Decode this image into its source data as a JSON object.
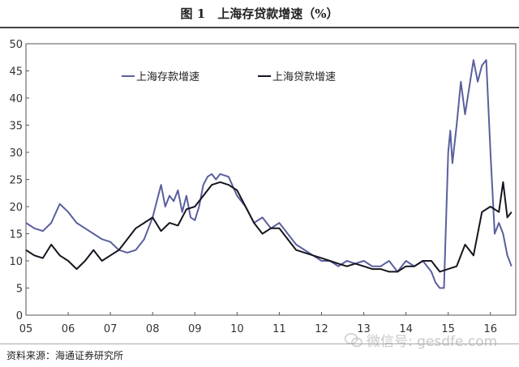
{
  "header": {
    "title": "图 1　上海存贷款增速（%）"
  },
  "footer": {
    "source": "资料来源：海通证券研究所"
  },
  "watermark": {
    "icon": "wechat-icon",
    "text": "微信号: gesdfe.com"
  },
  "colors": {
    "deposit": "#5a5f9e",
    "loan": "#15151f",
    "axis": "#555555"
  },
  "chart_data": {
    "type": "line",
    "title": "图 1　上海存贷款增速（%）",
    "xlim": [
      2005,
      2016.6
    ],
    "ylim": [
      0,
      50
    ],
    "yticks": [
      0,
      5,
      10,
      15,
      20,
      25,
      30,
      35,
      40,
      45,
      50
    ],
    "xticks": [
      {
        "label": "05",
        "value": 2005
      },
      {
        "label": "06",
        "value": 2006
      },
      {
        "label": "07",
        "value": 2007
      },
      {
        "label": "08",
        "value": 2008
      },
      {
        "label": "09",
        "value": 2009
      },
      {
        "label": "10",
        "value": 2010
      },
      {
        "label": "11",
        "value": 2011
      },
      {
        "label": "12",
        "value": 2012
      },
      {
        "label": "13",
        "value": 2013
      },
      {
        "label": "14",
        "value": 2014
      },
      {
        "label": "15",
        "value": 2015
      },
      {
        "label": "16",
        "value": 2016
      }
    ],
    "legend_position": "top-center",
    "grid": false,
    "series": [
      {
        "name": "上海存款增速",
        "x": [
          2005.0,
          2005.2,
          2005.4,
          2005.6,
          2005.8,
          2006.0,
          2006.2,
          2006.4,
          2006.6,
          2006.8,
          2007.0,
          2007.2,
          2007.4,
          2007.6,
          2007.8,
          2008.0,
          2008.1,
          2008.2,
          2008.3,
          2008.4,
          2008.5,
          2008.6,
          2008.7,
          2008.8,
          2008.9,
          2009.0,
          2009.1,
          2009.2,
          2009.3,
          2009.4,
          2009.5,
          2009.6,
          2009.8,
          2010.0,
          2010.2,
          2010.4,
          2010.6,
          2010.8,
          2011.0,
          2011.2,
          2011.4,
          2011.6,
          2011.8,
          2012.0,
          2012.2,
          2012.4,
          2012.6,
          2012.8,
          2013.0,
          2013.2,
          2013.4,
          2013.6,
          2013.8,
          2014.0,
          2014.2,
          2014.4,
          2014.6,
          2014.7,
          2014.8,
          2014.9,
          2015.0,
          2015.05,
          2015.1,
          2015.2,
          2015.3,
          2015.4,
          2015.5,
          2015.6,
          2015.7,
          2015.8,
          2015.9,
          2016.0,
          2016.1,
          2016.2,
          2016.3,
          2016.4,
          2016.5
        ],
        "y": [
          17,
          16,
          15.5,
          17,
          20.5,
          19,
          17,
          16,
          15,
          14,
          13.5,
          12,
          11.5,
          12,
          14,
          18,
          21,
          24,
          20,
          22,
          21,
          23,
          19,
          22,
          18,
          17.5,
          20,
          24,
          25.5,
          26,
          25,
          26,
          25.5,
          22,
          20,
          17,
          18,
          16,
          17,
          15,
          13,
          12,
          11,
          10,
          10,
          9,
          10,
          9.5,
          10,
          9,
          9,
          10,
          8,
          10,
          9,
          10,
          8,
          6,
          5,
          5,
          30,
          34,
          28,
          35,
          43,
          37,
          42,
          47,
          43,
          46,
          47,
          30,
          15,
          17,
          15,
          11,
          9
        ]
      },
      {
        "name": "上海贷款增速",
        "x": [
          2005.0,
          2005.2,
          2005.4,
          2005.6,
          2005.8,
          2006.0,
          2006.2,
          2006.4,
          2006.6,
          2006.8,
          2007.0,
          2007.2,
          2007.4,
          2007.6,
          2007.8,
          2008.0,
          2008.2,
          2008.4,
          2008.6,
          2008.8,
          2009.0,
          2009.2,
          2009.4,
          2009.6,
          2009.8,
          2010.0,
          2010.2,
          2010.4,
          2010.6,
          2010.8,
          2011.0,
          2011.2,
          2011.4,
          2011.6,
          2011.8,
          2012.0,
          2012.2,
          2012.4,
          2012.6,
          2012.8,
          2013.0,
          2013.2,
          2013.4,
          2013.6,
          2013.8,
          2014.0,
          2014.2,
          2014.4,
          2014.6,
          2014.8,
          2015.0,
          2015.2,
          2015.4,
          2015.6,
          2015.8,
          2016.0,
          2016.2,
          2016.3,
          2016.4,
          2016.5
        ],
        "y": [
          12,
          11,
          10.5,
          13,
          11,
          10,
          8.5,
          10,
          12,
          10,
          11,
          12,
          14,
          16,
          17,
          18,
          15.5,
          17,
          16.5,
          19.5,
          20,
          22,
          24,
          24.5,
          24,
          23,
          20,
          17,
          15,
          16,
          16,
          14,
          12,
          11.5,
          11,
          10.5,
          10,
          9.5,
          9,
          9.5,
          9,
          8.5,
          8.5,
          8,
          8,
          9,
          9,
          10,
          10,
          8,
          8.5,
          9,
          13,
          11,
          19,
          20,
          19,
          24.5,
          18,
          19
        ]
      }
    ]
  }
}
